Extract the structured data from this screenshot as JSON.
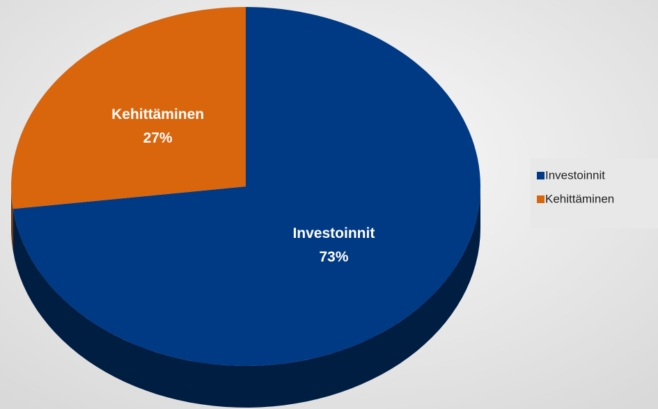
{
  "chart_data": {
    "type": "pie",
    "categories": [
      "Investoinnit",
      "Kehittäminen"
    ],
    "values": [
      73,
      27
    ],
    "value_labels": [
      "73%",
      "27%"
    ],
    "colors": [
      "#003a84",
      "#d9650c"
    ],
    "legend": "right"
  }
}
